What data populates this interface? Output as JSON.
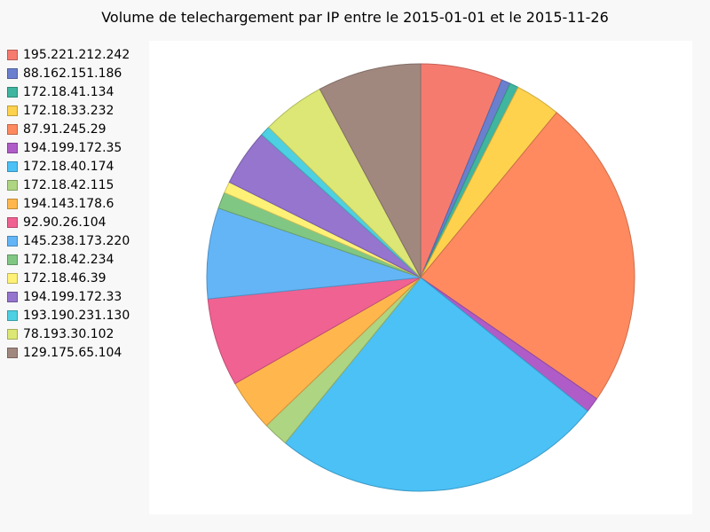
{
  "chart_data": {
    "type": "pie",
    "title": "Volume de telechargement par IP entre le 2015-01-01 et le 2015-11-26",
    "legend_position": "left",
    "series": [
      {
        "name": "195.221.212.242",
        "value": 6.5,
        "color": "#f67b6f"
      },
      {
        "name": "88.162.151.186",
        "value": 0.7,
        "color": "#6b7fcf"
      },
      {
        "name": "172.18.41.134",
        "value": 0.7,
        "color": "#40b59f"
      },
      {
        "name": "172.18.33.232",
        "value": 3.6,
        "color": "#ffd24d"
      },
      {
        "name": "87.91.245.29",
        "value": 24.8,
        "color": "#ff8a5f"
      },
      {
        "name": "194.199.172.35",
        "value": 1.2,
        "color": "#b05cc8"
      },
      {
        "name": "172.18.40.174",
        "value": 26.4,
        "color": "#4bc1f6"
      },
      {
        "name": "172.18.42.115",
        "value": 2.0,
        "color": "#aed581"
      },
      {
        "name": "194.143.178.6",
        "value": 4.1,
        "color": "#ffb74d"
      },
      {
        "name": "92.90.26.104",
        "value": 7.0,
        "color": "#f06292"
      },
      {
        "name": "145.238.173.220",
        "value": 7.2,
        "color": "#64b5f6"
      },
      {
        "name": "172.18.42.234",
        "value": 1.3,
        "color": "#81c784"
      },
      {
        "name": "172.18.46.39",
        "value": 0.9,
        "color": "#fff176"
      },
      {
        "name": "194.199.172.33",
        "value": 4.5,
        "color": "#9575cd"
      },
      {
        "name": "193.190.231.130",
        "value": 0.8,
        "color": "#4dd0e1"
      },
      {
        "name": "78.193.30.102",
        "value": 5.0,
        "color": "#dce775"
      },
      {
        "name": "129.175.65.104",
        "value": 8.2,
        "color": "#a1887f"
      }
    ]
  }
}
